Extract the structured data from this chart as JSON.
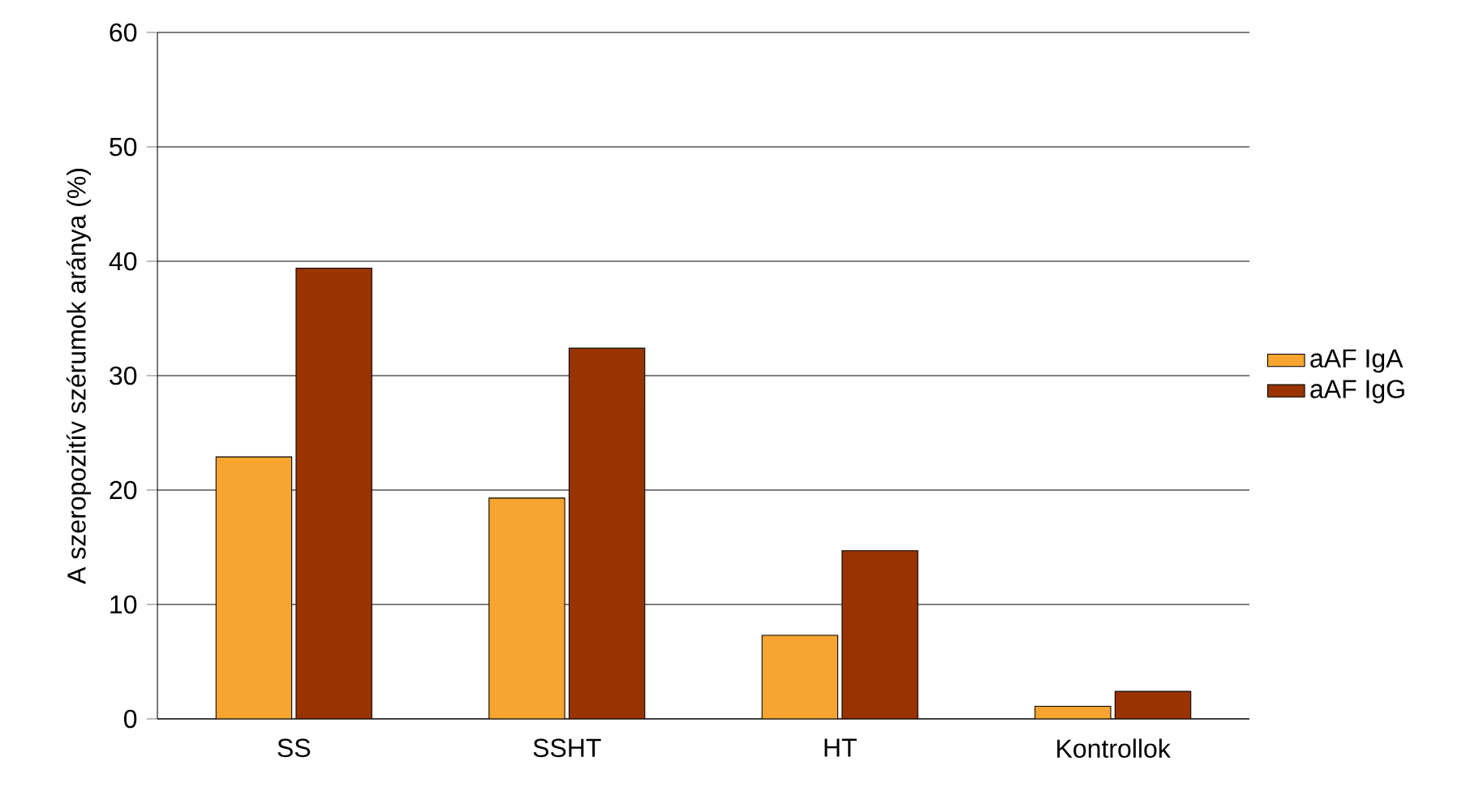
{
  "chart_data": {
    "type": "bar",
    "ylabel": "A szeropozitív szérumok aránya (%)",
    "categories": [
      "SS",
      "SSHT",
      "HT",
      "Kontrollok"
    ],
    "series": [
      {
        "name": "aAF IgA",
        "color": "#f7a530",
        "values": [
          22.9,
          19.3,
          7.3,
          1.1
        ]
      },
      {
        "name": "aAF IgG",
        "color": "#993300",
        "values": [
          39.4,
          32.4,
          14.7,
          2.4
        ]
      }
    ],
    "ylim": [
      0,
      60
    ],
    "yticks": [
      0,
      10,
      20,
      30,
      40,
      50,
      60
    ],
    "grid": "y",
    "legend": "right"
  }
}
